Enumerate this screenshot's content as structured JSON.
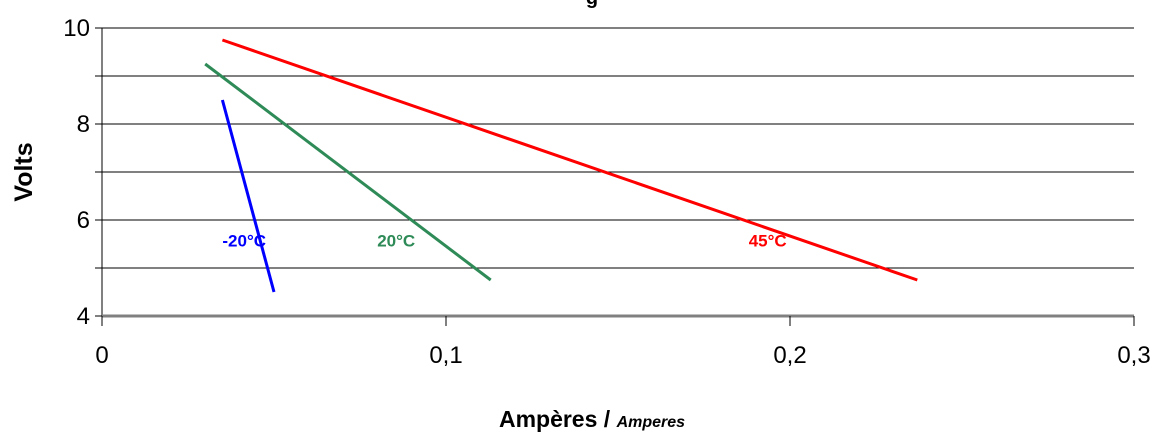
{
  "chart_data": {
    "type": "line",
    "title": "g",
    "xlabel": "Ampères / ",
    "xlabel_italic": "Amperes",
    "ylabel": "Volts",
    "xlim": [
      0,
      0.3
    ],
    "ylim": [
      4,
      10
    ],
    "x_ticks": [
      "0",
      "0,1",
      "0,2",
      "0,3"
    ],
    "y_ticks": [
      "4",
      "6",
      "8",
      "10"
    ],
    "y_grid": [
      4,
      5,
      6,
      7,
      8,
      9,
      10
    ],
    "grid": "horizontal",
    "series": [
      {
        "name": "-20°C",
        "color": "#0000ff",
        "points": [
          [
            0.035,
            8.5
          ],
          [
            0.05,
            4.5
          ]
        ]
      },
      {
        "name": "20°C",
        "color": "#2e8b57",
        "points": [
          [
            0.03,
            9.25
          ],
          [
            0.113,
            4.75
          ]
        ]
      },
      {
        "name": "45°C",
        "color": "#ff0000",
        "points": [
          [
            0.035,
            9.75
          ],
          [
            0.237,
            4.75
          ]
        ]
      }
    ]
  }
}
